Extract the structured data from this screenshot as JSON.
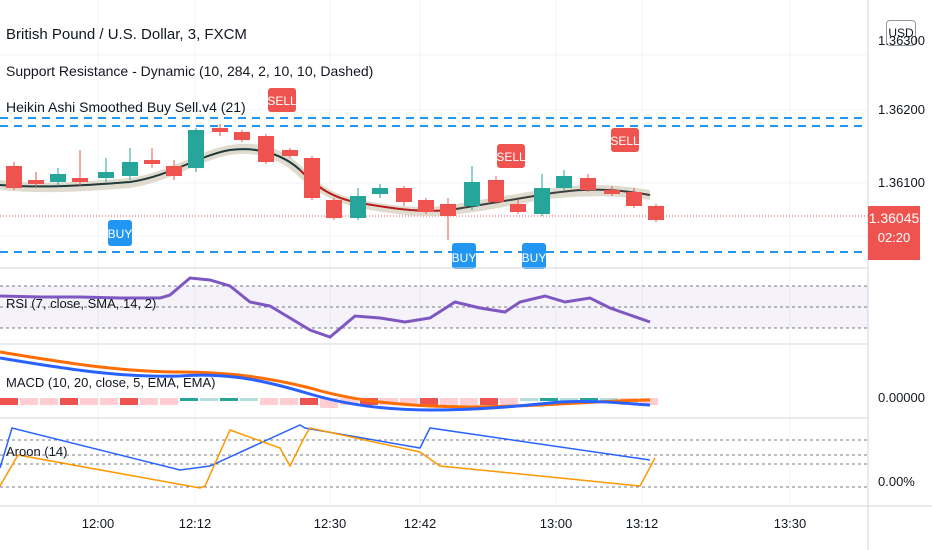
{
  "header": {
    "symbol_title": "British Pound / U.S. Dollar, 3, FXCM",
    "indicator_1": "Support Resistance - Dynamic (10, 284, 2, 10, 10, Dashed)",
    "indicator_2": "Heikin Ashi Smoothed Buy Sell.v4  (21)"
  },
  "currency_button": "USD",
  "price_axis": {
    "labels": [
      "1.36300",
      "1.36200",
      "1.36100"
    ],
    "last_price": "1.36045",
    "countdown": "02:20"
  },
  "signals": {
    "sell": "SELL",
    "buy": "BUY"
  },
  "panes": {
    "rsi": {
      "label": "RSI (7, close, SMA, 14, 2)"
    },
    "macd": {
      "label": "MACD (10, 20, close, 5, EMA, EMA)",
      "axis_value": "0.00000"
    },
    "aroon": {
      "label": "Aroon (14)",
      "axis_value": "0.00%"
    }
  },
  "time_axis": [
    "12:00",
    "12:12",
    "12:30",
    "12:42",
    "13:00",
    "13:12",
    "13:30"
  ],
  "colors": {
    "up": "#26a69a",
    "down": "#ef5350",
    "support_resistance": "#2196f3",
    "rsi": "#7e57c2",
    "macd": "#2962ff",
    "signal": "#ff6d00",
    "aroon_up": "#2962ff",
    "aroon_down": "#ff9800"
  }
}
